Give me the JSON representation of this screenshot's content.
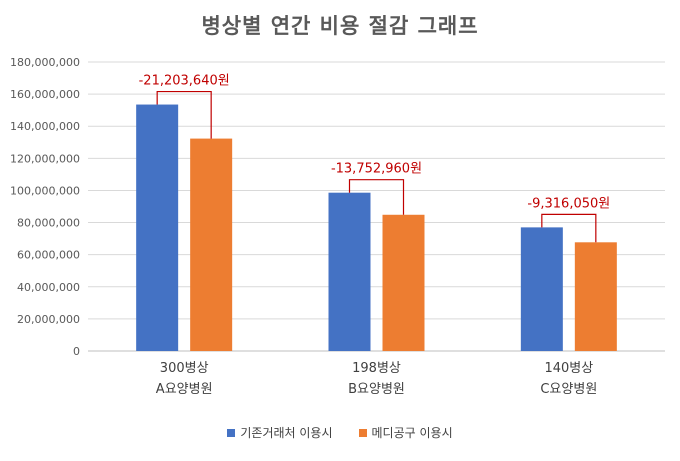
{
  "chart_data": {
    "type": "bar",
    "title": "병상별 연간 비용 절감 그래프",
    "categories": [
      {
        "line1": "300병상",
        "line2": "A요양병원"
      },
      {
        "line1": "198병상",
        "line2": "B요양병원"
      },
      {
        "line1": "140병상",
        "line2": "C요양병원"
      }
    ],
    "series": [
      {
        "name": "기존거래처 이용시",
        "color": "#4472C4",
        "values": [
          153500000,
          98600000,
          77000000
        ]
      },
      {
        "name": "메디공구 이용시",
        "color": "#ED7D31",
        "values": [
          132300000,
          84850000,
          67700000
        ]
      }
    ],
    "annotations": [
      "-21,203,640원",
      "-13,752,960원",
      "-9,316,050원"
    ],
    "annotation_color": "#C00000",
    "ylim": [
      0,
      180000000
    ],
    "y_ticks": [
      "0",
      "20,000,000",
      "40,000,000",
      "60,000,000",
      "80,000,000",
      "100,000,000",
      "120,000,000",
      "140,000,000",
      "160,000,000",
      "180,000,000"
    ],
    "grid": true,
    "legend_position": "bottom"
  }
}
